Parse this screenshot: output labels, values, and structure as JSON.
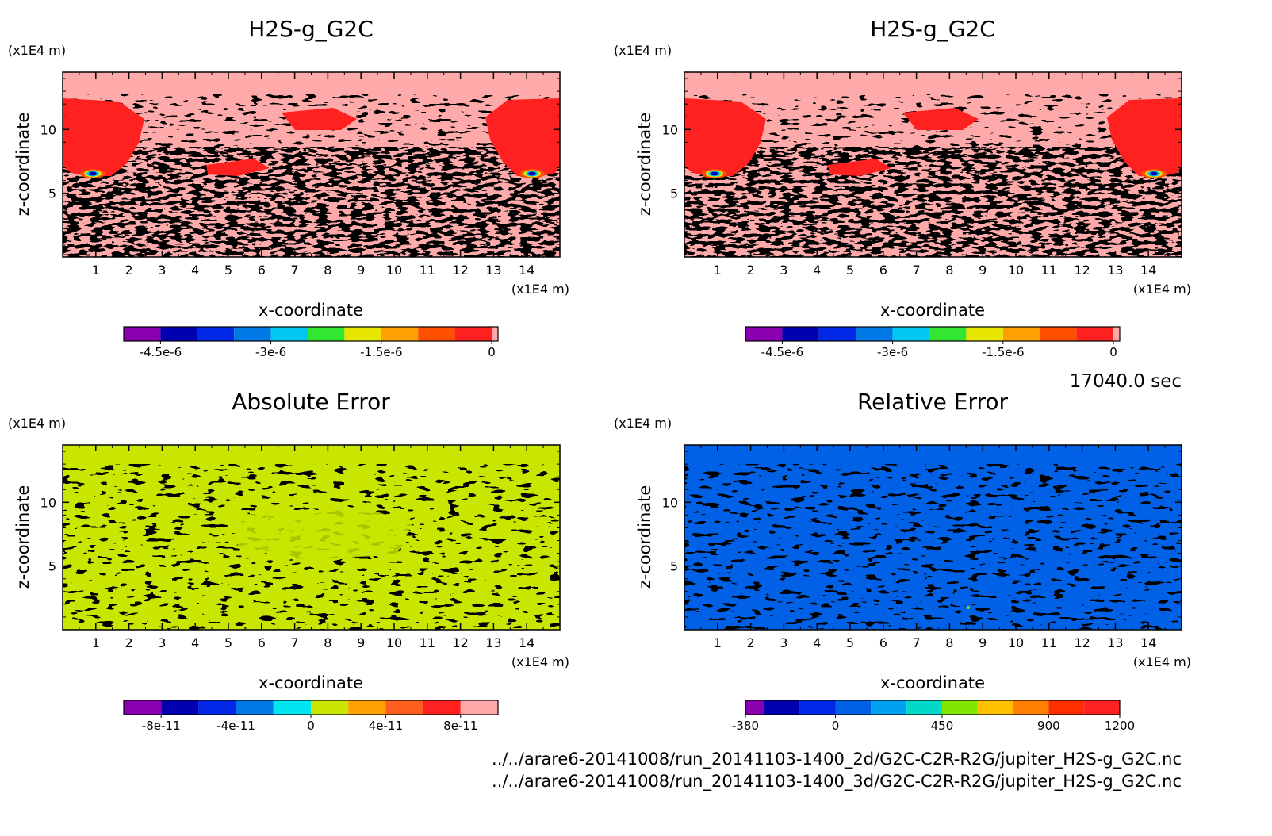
{
  "figure": {
    "time_label": "17040.0 sec",
    "file_paths": [
      "../../arare6-20141008/run_20141103-1400_2d/G2C-C2R-R2G/jupiter_H2S-g_G2C.nc",
      "../../arare6-20141008/run_20141103-1400_3d/G2C-C2R-R2G/jupiter_H2S-g_G2C.nc"
    ],
    "unit_label": "(x1E4 m)"
  },
  "chart_data": [
    {
      "type": "heatmap",
      "title": "H2S-g_G2C",
      "xlabel": "x-coordinate",
      "ylabel": "z-coordinate",
      "xunit": "(x1E4 m)",
      "yunit": "(x1E4 m)",
      "xlim": [
        0,
        15
      ],
      "ylim": [
        0,
        14.5
      ],
      "xticks": [
        1,
        2,
        3,
        4,
        5,
        6,
        7,
        8,
        9,
        10,
        11,
        12,
        13,
        14
      ],
      "yticks": [
        5,
        10
      ],
      "background_value": -2.5e-07,
      "colorbar": {
        "levels": [
          -5e-06,
          -4.5e-06,
          -4e-06,
          -3.5e-06,
          -3e-06,
          -2.5e-06,
          -2e-06,
          -1.5e-06,
          -1e-06,
          -5e-07,
          0
        ],
        "colors": [
          "#8a00b0",
          "#0000b0",
          "#0028e6",
          "#0078e6",
          "#00c8f0",
          "#32e632",
          "#e6e600",
          "#ffa000",
          "#ff5000",
          "#ff2020"
        ],
        "top_color": "#ffaaaa",
        "ticks": [
          {
            "value": -4.5e-06,
            "label": "-4.5e-6"
          },
          {
            "value": -3e-06,
            "label": "-3e-6"
          },
          {
            "value": -1.5e-06,
            "label": "-1.5e-6"
          },
          {
            "value": 0,
            "label": "0"
          }
        ]
      }
    },
    {
      "type": "heatmap",
      "title": "H2S-g_G2C",
      "xlabel": "x-coordinate",
      "ylabel": "z-coordinate",
      "xunit": "(x1E4 m)",
      "yunit": "(x1E4 m)",
      "xlim": [
        0,
        15
      ],
      "ylim": [
        0,
        14.5
      ],
      "xticks": [
        1,
        2,
        3,
        4,
        5,
        6,
        7,
        8,
        9,
        10,
        11,
        12,
        13,
        14
      ],
      "yticks": [
        5,
        10
      ],
      "background_value": -2.5e-07,
      "colorbar": {
        "levels": [
          -5e-06,
          -4.5e-06,
          -4e-06,
          -3.5e-06,
          -3e-06,
          -2.5e-06,
          -2e-06,
          -1.5e-06,
          -1e-06,
          -5e-07,
          0
        ],
        "colors": [
          "#8a00b0",
          "#0000b0",
          "#0028e6",
          "#0078e6",
          "#00c8f0",
          "#32e632",
          "#e6e600",
          "#ffa000",
          "#ff5000",
          "#ff2020"
        ],
        "top_color": "#ffaaaa",
        "ticks": [
          {
            "value": -4.5e-06,
            "label": "-4.5e-6"
          },
          {
            "value": -3e-06,
            "label": "-3e-6"
          },
          {
            "value": -1.5e-06,
            "label": "-1.5e-6"
          },
          {
            "value": 0,
            "label": "0"
          }
        ]
      }
    },
    {
      "type": "heatmap",
      "title": "Absolute Error",
      "xlabel": "x-coordinate",
      "ylabel": "z-coordinate",
      "xunit": "(x1E4 m)",
      "yunit": "(x1E4 m)",
      "xlim": [
        0,
        15
      ],
      "ylim": [
        0,
        14.5
      ],
      "xticks": [
        1,
        2,
        3,
        4,
        5,
        6,
        7,
        8,
        9,
        10,
        11,
        12,
        13,
        14
      ],
      "yticks": [
        5,
        10
      ],
      "background_value": 1e-11,
      "colorbar": {
        "levels": [
          -1e-10,
          -8e-11,
          -6e-11,
          -4e-11,
          -2e-11,
          0,
          2e-11,
          4e-11,
          6e-11,
          8e-11,
          1e-10
        ],
        "colors": [
          "#8a00b0",
          "#0000b0",
          "#0028e6",
          "#0078e6",
          "#00e6f0",
          "#c8e600",
          "#ffa000",
          "#ff6020",
          "#ff2020",
          "#ffaaaa"
        ],
        "ticks": [
          {
            "value": -8e-11,
            "label": "-8e-11"
          },
          {
            "value": -4e-11,
            "label": "-4e-11"
          },
          {
            "value": 0,
            "label": "0"
          },
          {
            "value": 4e-11,
            "label": "4e-11"
          },
          {
            "value": 8e-11,
            "label": "8e-11"
          }
        ]
      }
    },
    {
      "type": "heatmap",
      "title": "Relative Error",
      "xlabel": "x-coordinate",
      "ylabel": "z-coordinate",
      "xunit": "(x1E4 m)",
      "yunit": "(x1E4 m)",
      "xlim": [
        0,
        15
      ],
      "ylim": [
        0,
        14.5
      ],
      "xticks": [
        1,
        2,
        3,
        4,
        5,
        6,
        7,
        8,
        9,
        10,
        11,
        12,
        13,
        14
      ],
      "yticks": [
        5,
        10
      ],
      "background_value": 50,
      "colorbar": {
        "levels": [
          -380,
          -300,
          -150,
          0,
          150,
          300,
          450,
          600,
          750,
          900,
          1050,
          1200
        ],
        "colors": [
          "#8a00b0",
          "#0000b0",
          "#0028e6",
          "#0060e6",
          "#00a0f0",
          "#00d8c8",
          "#80e600",
          "#ffc000",
          "#ff8000",
          "#ff3000",
          "#ff2020"
        ],
        "ticks": [
          {
            "value": -380,
            "label": "-380"
          },
          {
            "value": 0,
            "label": "0"
          },
          {
            "value": 450,
            "label": "450"
          },
          {
            "value": 900,
            "label": "900"
          },
          {
            "value": 1200,
            "label": "1200"
          }
        ]
      }
    }
  ]
}
